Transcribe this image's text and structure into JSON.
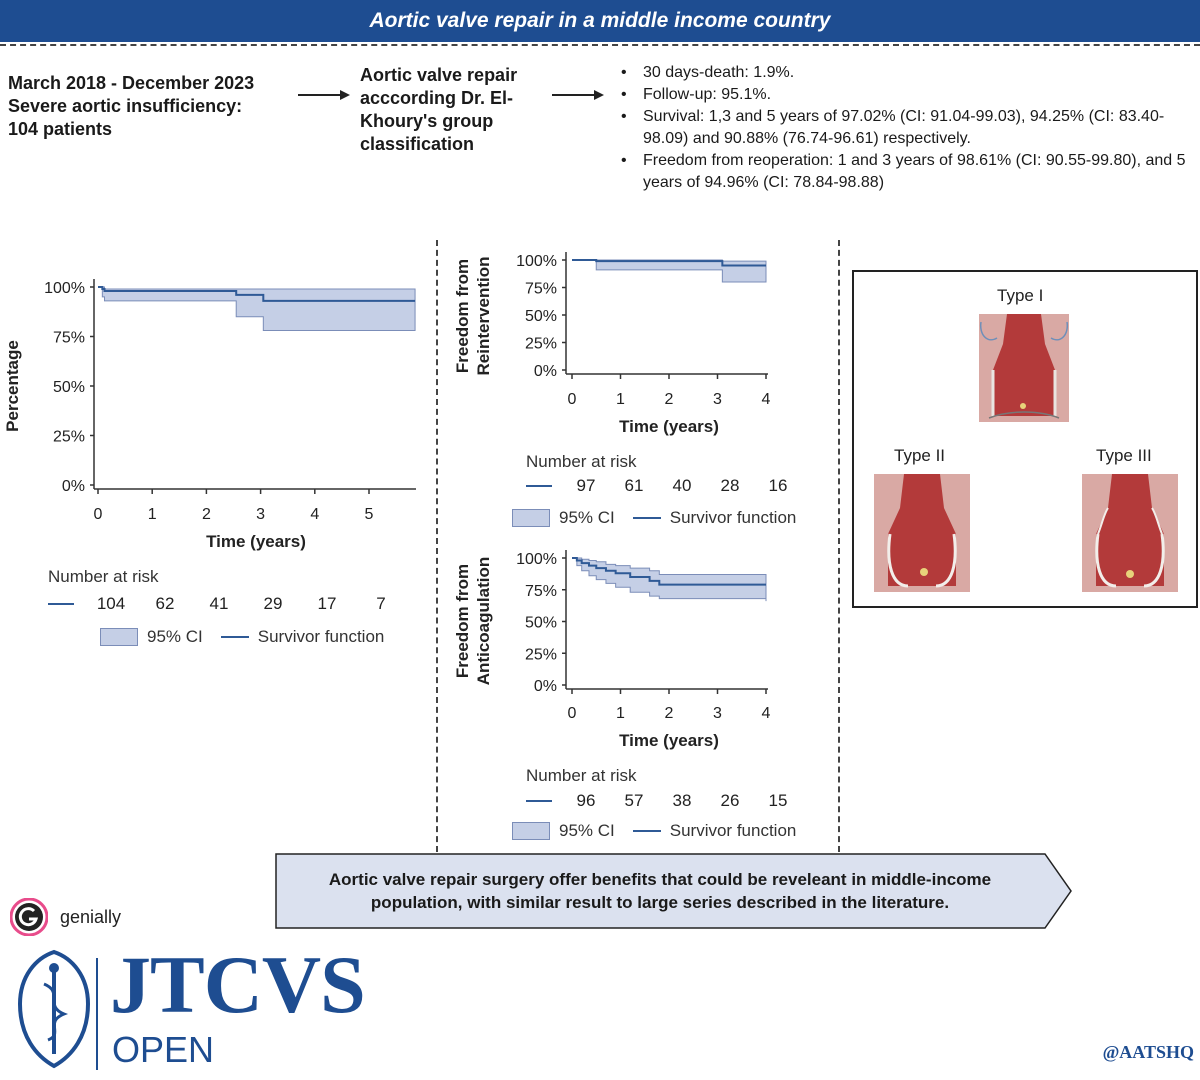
{
  "header": {
    "title": "Aortic valve repair in a middle income country"
  },
  "intro": {
    "cohort_lines": [
      "March 2018 - December 2023",
      "Severe aortic insufficiency:",
      "104 patients"
    ],
    "method_lines": [
      "Aortic valve repair",
      "acccording Dr. El-",
      "Khoury's group",
      "classification"
    ]
  },
  "results": {
    "items": [
      "30 days-death: 1.9%.",
      "Follow-up: 95.1%.",
      "Survival: 1,3 and 5 years of 97.02% (CI: 91.04-99.03), 94.25% (CI: 83.40-98.09) and 90.88% (76.74-96.61) respectively.",
      "Freedom from reoperation: 1 and 3 years of 98.61% (CI: 90.55-99.80), and 5 years of 94.96% (CI: 78.84-98.88)"
    ]
  },
  "chart_data": [
    {
      "type": "line",
      "ylabel": "Percentage",
      "xlabel": "Time (years)",
      "xlim": [
        0,
        6
      ],
      "ylim": [
        0,
        100
      ],
      "xticks": [
        0,
        1,
        2,
        3,
        4,
        5
      ],
      "yticks": [
        "0%",
        "25%",
        "50%",
        "75%",
        "100%"
      ],
      "series": [
        {
          "name": "Survivor function",
          "x": [
            0,
            0.08,
            0.12,
            2.55,
            3.05,
            5.85
          ],
          "y": [
            100,
            99,
            98,
            96,
            93,
            93
          ]
        },
        {
          "name": "95% CI",
          "x": [
            0,
            0.08,
            0.12,
            2.55,
            3.05,
            5.85
          ],
          "upper": [
            100,
            100,
            99,
            99,
            99,
            99
          ],
          "lower": [
            100,
            95,
            93,
            85,
            78,
            78
          ]
        }
      ],
      "risk": {
        "title": "Number at risk",
        "values": [
          104,
          62,
          41,
          29,
          17,
          7
        ]
      },
      "legend": [
        "95% CI",
        "Survivor function"
      ]
    },
    {
      "type": "line",
      "ylabel": "Freedom from Reintervention",
      "ylabel_lines": [
        "Freedom from",
        "Reintervention"
      ],
      "xlabel": "Time (years)",
      "xlim": [
        0,
        4
      ],
      "ylim": [
        0,
        100
      ],
      "xticks": [
        0,
        1,
        2,
        3,
        4
      ],
      "yticks": [
        "0%",
        "25%",
        "50%",
        "75%",
        "100%"
      ],
      "series": [
        {
          "name": "Survivor function",
          "x": [
            0,
            0.5,
            3.1,
            4
          ],
          "y": [
            100,
            99,
            95,
            95
          ]
        },
        {
          "name": "95% CI",
          "x": [
            0,
            0.5,
            3.1,
            4
          ],
          "upper": [
            100,
            100,
            99,
            99
          ],
          "lower": [
            100,
            91,
            80,
            80
          ]
        }
      ],
      "risk": {
        "title": "Number at risk",
        "values": [
          97,
          61,
          40,
          28,
          16
        ]
      },
      "legend": [
        "95% CI",
        "Survivor function"
      ]
    },
    {
      "type": "line",
      "ylabel": "Freedom from Anticoagulation",
      "ylabel_lines": [
        "Freedom from",
        "Anticoagulation"
      ],
      "xlabel": "Time (years)",
      "xlim": [
        0,
        4
      ],
      "ylim": [
        0,
        100
      ],
      "xticks": [
        0,
        1,
        2,
        3,
        4
      ],
      "yticks": [
        "0%",
        "25%",
        "50%",
        "75%",
        "100%"
      ],
      "series": [
        {
          "name": "Survivor function",
          "x": [
            0,
            0.1,
            0.2,
            0.35,
            0.5,
            0.7,
            0.9,
            1.2,
            1.6,
            1.8,
            4
          ],
          "y": [
            100,
            98,
            96,
            94,
            92,
            90,
            88,
            85,
            82,
            79,
            79
          ]
        },
        {
          "name": "95% CI",
          "x": [
            0,
            0.1,
            0.2,
            0.35,
            0.5,
            0.7,
            0.9,
            1.2,
            1.6,
            1.8,
            4
          ],
          "upper": [
            100,
            100,
            99,
            98,
            97,
            95,
            94,
            92,
            90,
            87,
            86
          ],
          "lower": [
            100,
            94,
            90,
            86,
            83,
            80,
            77,
            73,
            70,
            68,
            66
          ]
        }
      ],
      "risk": {
        "title": "Number at risk",
        "values": [
          96,
          57,
          38,
          26,
          15
        ]
      },
      "legend": [
        "95% CI",
        "Survivor function"
      ]
    }
  ],
  "types": {
    "type1": "Type I",
    "type2": "Type II",
    "type3": "Type III"
  },
  "conclusion": {
    "text": "Aortic valve repair surgery offer benefits that could be reveleant in middle-income population, with similar result to large series described in the literature."
  },
  "footer": {
    "genially": "genially",
    "journal_main": "JTCVS",
    "journal_sub": "OPEN",
    "handle": "@AATSHQ"
  },
  "colors": {
    "brand_blue": "#1e4d91",
    "line": "#2f5a96",
    "ci_fill": "#c5cfe6",
    "ci_stroke": "#7b8db8",
    "aorta": "#b33a3a"
  }
}
